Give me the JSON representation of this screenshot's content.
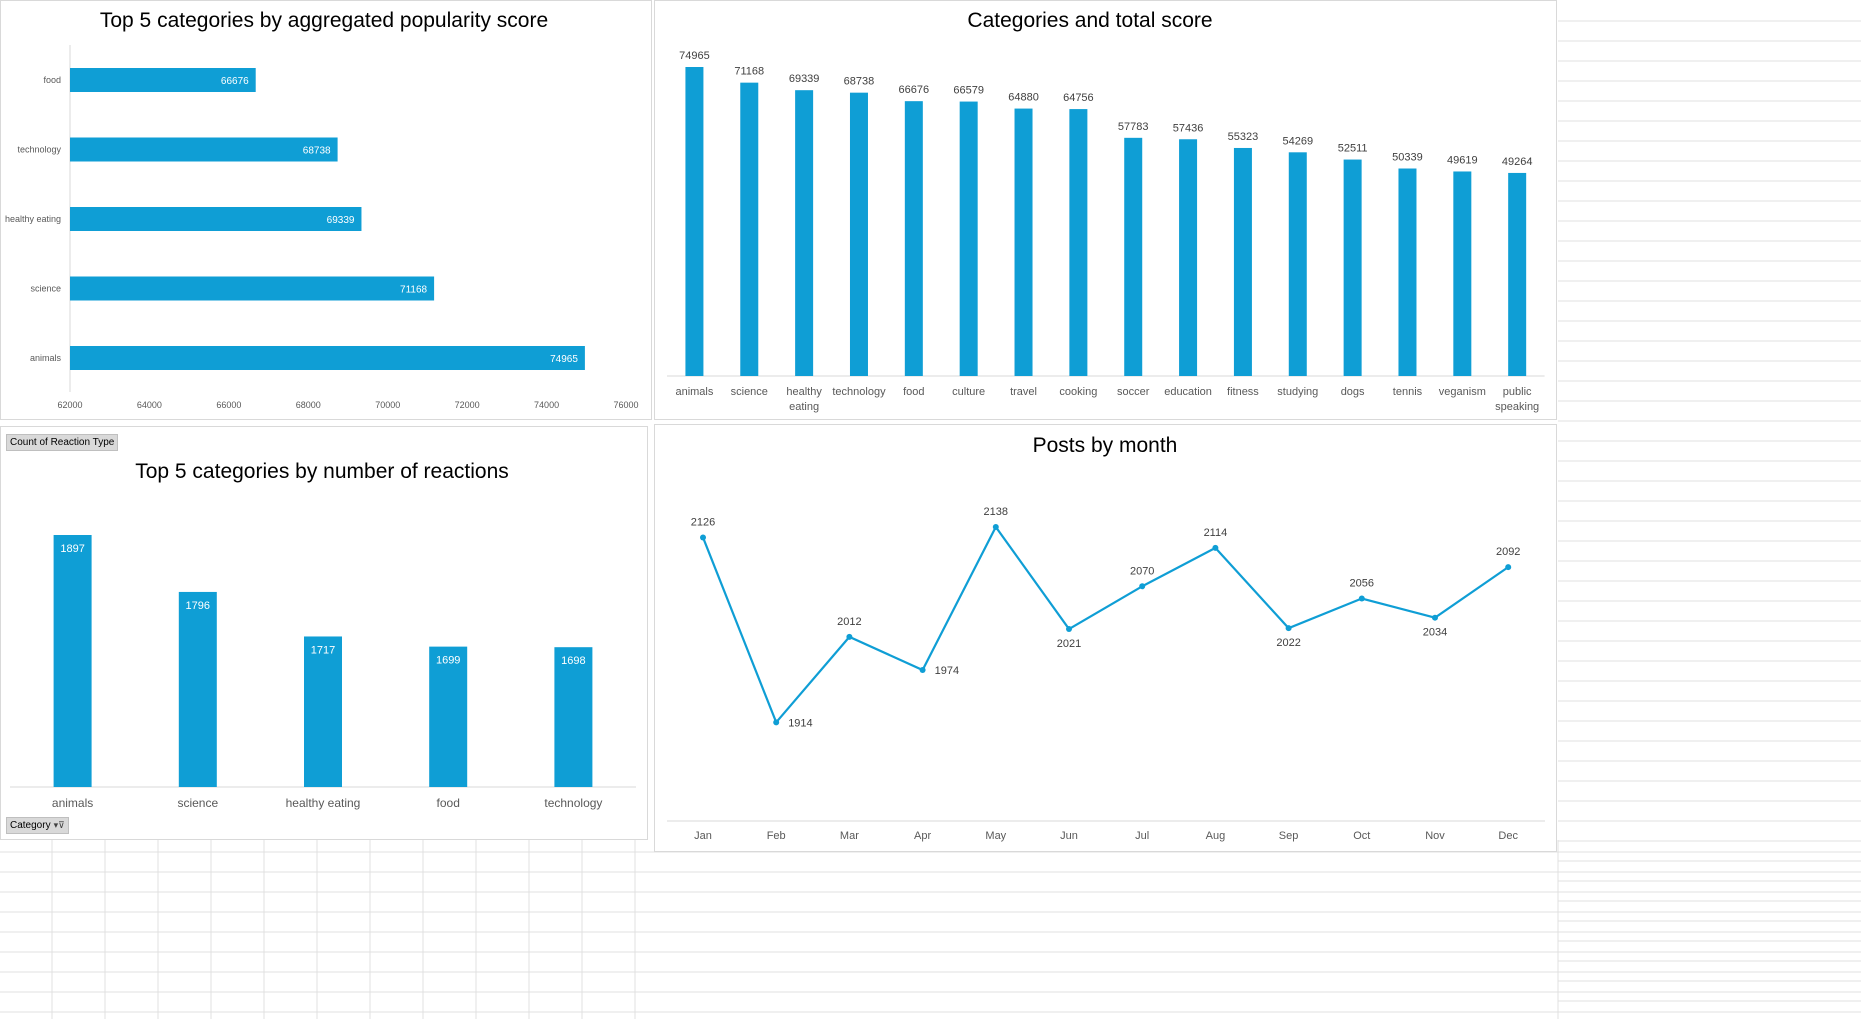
{
  "colors": {
    "bar": "#0f9ed5",
    "axis": "#d9d9d9",
    "gridline": "#e6e6e6"
  },
  "pivot": {
    "count_button": "Count of Reaction Type",
    "category_button": "Category",
    "filter_icon": "filter-dropdown-icon"
  },
  "chart_data": [
    {
      "type": "bar",
      "orientation": "horizontal",
      "title": "Top 5 categories by aggregated popularity score",
      "categories": [
        "food",
        "technology",
        "healthy eating",
        "science",
        "animals"
      ],
      "values": [
        66676,
        68738,
        69339,
        71168,
        74965
      ],
      "xlim": [
        62000,
        76000
      ],
      "xticks": [
        "62000",
        "64000",
        "66000",
        "68000",
        "70000",
        "72000",
        "74000",
        "76000"
      ],
      "data_labels": true,
      "legend": "none"
    },
    {
      "type": "bar",
      "title": "Categories and total score",
      "categories": [
        "animals",
        "science",
        "healthy eating",
        "technology",
        "food",
        "culture",
        "travel",
        "cooking",
        "soccer",
        "education",
        "fitness",
        "studying",
        "dogs",
        "tennis",
        "veganism",
        "public speaking"
      ],
      "values": [
        74965,
        71168,
        69339,
        68738,
        66676,
        66579,
        64880,
        64756,
        57783,
        57436,
        55323,
        54269,
        52511,
        50339,
        49619,
        49264
      ],
      "ylim": [
        0,
        80000
      ],
      "data_labels": true,
      "legend": "none"
    },
    {
      "type": "bar",
      "title": "Top 5 categories by number of reactions",
      "categories": [
        "animals",
        "science",
        "healthy eating",
        "food",
        "technology"
      ],
      "values": [
        1897,
        1796,
        1717,
        1699,
        1698
      ],
      "ylim": [
        1450,
        1950
      ],
      "data_labels": true,
      "legend": "none"
    },
    {
      "type": "line",
      "title": "Posts by month",
      "categories": [
        "Jan",
        "Feb",
        "Mar",
        "Apr",
        "May",
        "Jun",
        "Jul",
        "Aug",
        "Sep",
        "Oct",
        "Nov",
        "Dec"
      ],
      "values": [
        2126,
        1914,
        2012,
        1974,
        2138,
        2021,
        2070,
        2114,
        2022,
        2056,
        2034,
        2092
      ],
      "ylim": [
        1800,
        2180
      ],
      "data_labels": true,
      "legend": "none"
    }
  ]
}
